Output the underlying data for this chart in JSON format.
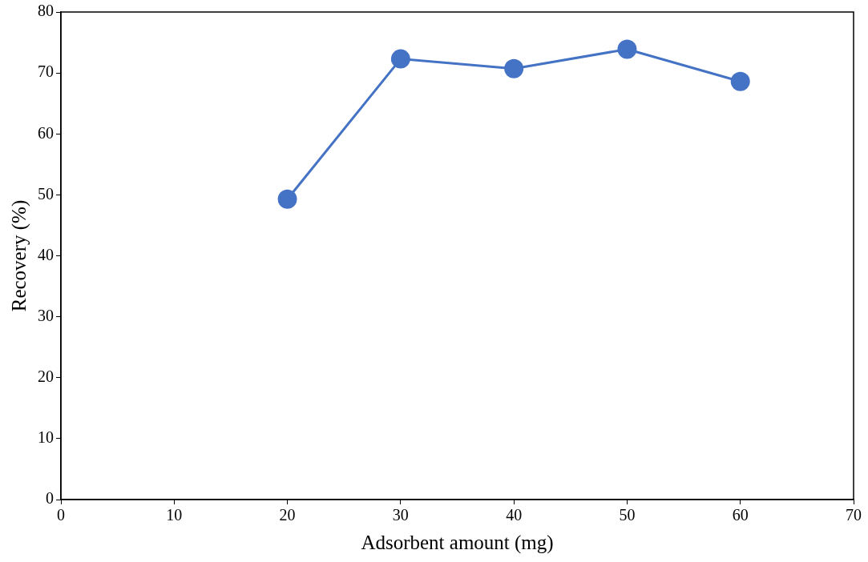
{
  "chart_data": {
    "type": "line",
    "xlabel": "Adsorbent amount (mg)",
    "ylabel": "Recovery (%)",
    "x": [
      20,
      30,
      40,
      50,
      60
    ],
    "series": [
      {
        "color": "#4472c4",
        "values": [
          49.3,
          72.3,
          70.7,
          73.9,
          68.6
        ]
      }
    ],
    "xlim": [
      0,
      70
    ],
    "xticks": [
      0,
      10,
      20,
      30,
      40,
      50,
      60,
      70
    ],
    "ylim": [
      0,
      80
    ],
    "yticks": [
      0,
      10,
      20,
      30,
      40,
      50,
      60,
      70,
      80
    ],
    "grid": false,
    "legend": false,
    "marker": "circle",
    "line_style": "solid"
  }
}
